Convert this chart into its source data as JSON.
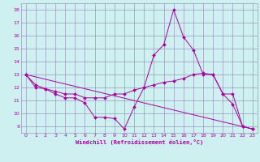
{
  "xlabel": "Windchill (Refroidissement éolien,°C)",
  "background_color": "#cff0f0",
  "grid_color": "#9999bb",
  "line_color": "#aa00aa",
  "xlim": [
    -0.5,
    23.5
  ],
  "ylim": [
    8.5,
    18.5
  ],
  "yticks": [
    9,
    10,
    11,
    12,
    13,
    14,
    15,
    16,
    17,
    18
  ],
  "xticks": [
    0,
    1,
    2,
    3,
    4,
    5,
    6,
    7,
    8,
    9,
    10,
    11,
    12,
    13,
    14,
    15,
    16,
    17,
    18,
    19,
    20,
    21,
    22,
    23
  ],
  "series": [
    {
      "x": [
        0,
        1,
        2,
        3,
        4,
        5,
        6,
        7,
        8,
        9,
        10,
        11,
        12,
        13,
        14,
        15,
        16,
        17,
        18,
        19,
        20,
        21,
        22,
        23
      ],
      "y": [
        13.0,
        12.2,
        11.9,
        11.5,
        11.2,
        11.2,
        10.8,
        9.7,
        9.7,
        9.6,
        8.8,
        10.5,
        12.0,
        14.5,
        15.3,
        18.0,
        15.9,
        14.9,
        13.0,
        13.0,
        11.5,
        10.7,
        9.0,
        8.8
      ],
      "marker": true
    },
    {
      "x": [
        0,
        1,
        2,
        3,
        4,
        5,
        6,
        7,
        8,
        9,
        10,
        11,
        12,
        13,
        14,
        15,
        16,
        17,
        18,
        19,
        20,
        21,
        22,
        23
      ],
      "y": [
        13.0,
        12.0,
        11.9,
        11.7,
        11.5,
        11.5,
        11.2,
        11.2,
        11.2,
        11.5,
        11.5,
        11.8,
        12.0,
        12.2,
        12.4,
        12.5,
        12.7,
        13.0,
        13.1,
        13.0,
        11.5,
        11.5,
        9.0,
        8.8
      ],
      "marker": true
    },
    {
      "x": [
        0,
        23
      ],
      "y": [
        13.0,
        8.8
      ],
      "marker": false
    }
  ]
}
